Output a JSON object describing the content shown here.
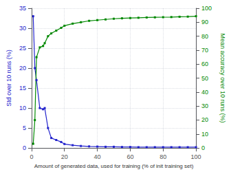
{
  "chart_data": {
    "type": "line",
    "x": [
      1,
      2,
      3,
      5,
      7,
      8,
      10,
      12,
      15,
      18,
      20,
      25,
      30,
      35,
      40,
      45,
      50,
      55,
      60,
      65,
      70,
      75,
      80,
      85,
      90,
      95,
      100
    ],
    "series": [
      {
        "color": "#2222cc",
        "marker": "square",
        "values": [
          33,
          20,
          17,
          10,
          9.7,
          10,
          5,
          2.5,
          2.0,
          1.5,
          1.0,
          0.7,
          0.5,
          0.4,
          0.35,
          0.3,
          0.3,
          0.25,
          0.25,
          0.2,
          0.2,
          0.2,
          0.2,
          0.2,
          0.2,
          0.2,
          0.2
        ]
      },
      {
        "color": "#008800",
        "marker": "square",
        "axis": "y2",
        "values": [
          3,
          20,
          65,
          72,
          73,
          75,
          80,
          82,
          84,
          86,
          87.5,
          89,
          90,
          91,
          91.5,
          92,
          92.5,
          92.8,
          93.0,
          93.2,
          93.4,
          93.5,
          93.6,
          93.7,
          93.9,
          94.0,
          94.3
        ]
      }
    ],
    "xlabel": "Amount of generated data, used for training (% of init training set)",
    "ylabel": "Std over 10 runs (%)",
    "y2label": "Mean accuracy over 10 runs (%)",
    "xlim": [
      0,
      100
    ],
    "xticks": [
      0,
      20,
      40,
      60,
      80,
      100
    ],
    "ylim": [
      0,
      35
    ],
    "yticks": [
      0,
      5,
      10,
      15,
      20,
      25,
      30,
      35
    ],
    "y2lim": [
      0,
      100
    ],
    "y2ticks": [
      0,
      10,
      20,
      30,
      40,
      50,
      60,
      70,
      80,
      90,
      100
    ],
    "grid": true
  }
}
